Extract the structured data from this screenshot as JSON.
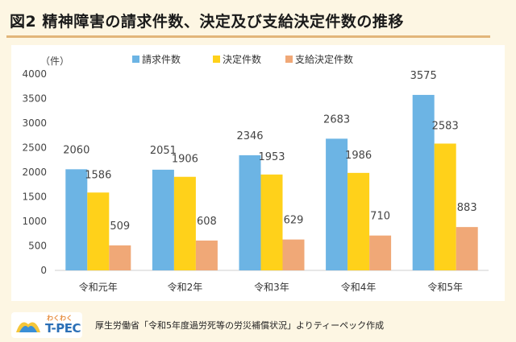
{
  "header": {
    "title": "図2 精神障害の請求件数、決定及び支給決定件数の推移"
  },
  "footer": {
    "logo_small_text": "わくわく",
    "logo_main_text": "T-PEC",
    "source": "厚生労働省「令和5年度過労死等の労災補償状況」よりティーペック作成"
  },
  "colors": {
    "background": "#fdf6e3",
    "accent_rule": "#e2b67a",
    "series_requests": "#6cb4e4",
    "series_decisions": "#ffd11a",
    "series_approved": "#f0a877"
  },
  "chart_data": {
    "type": "bar",
    "unit_label": "（件）",
    "categories": [
      "令和元年",
      "令和2年",
      "令和3年",
      "令和4年",
      "令和5年"
    ],
    "series": [
      {
        "name": "請求件数",
        "values": [
          2060,
          2051,
          2346,
          2683,
          3575
        ]
      },
      {
        "name": "決定件数",
        "values": [
          1586,
          1906,
          1953,
          1986,
          2583
        ]
      },
      {
        "name": "支給決定件数",
        "values": [
          509,
          608,
          629,
          710,
          883
        ]
      }
    ],
    "ylim": [
      0,
      4000
    ],
    "yticks": [
      0,
      500,
      1000,
      1500,
      2000,
      2500,
      3000,
      3500,
      4000
    ],
    "grid": false,
    "legend": "top-center"
  }
}
